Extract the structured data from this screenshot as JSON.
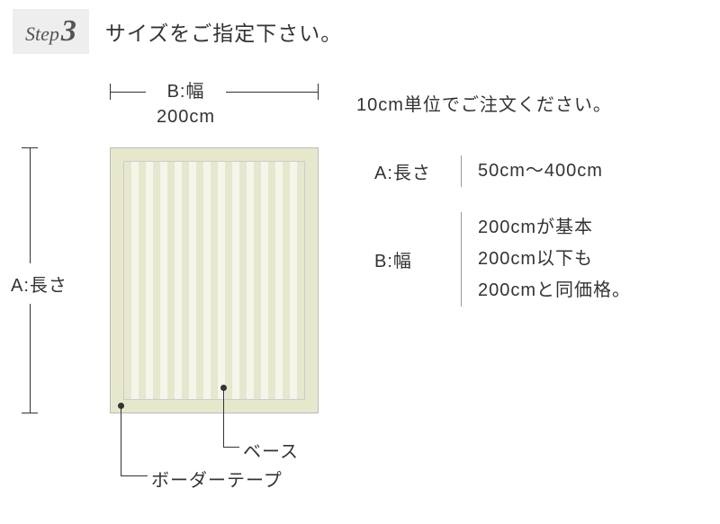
{
  "header": {
    "step_text": "Step",
    "step_num": "3",
    "title": "サイズをご指定下さい。"
  },
  "diagram": {
    "width_label_name": "B:幅",
    "width_label_value": "200cm",
    "height_label": "A:長さ",
    "callout_base": "ベース",
    "callout_border": "ボーダーテープ",
    "colors": {
      "rug_border": "#e7e7ce",
      "stripe_a": "#e7e7ce",
      "stripe_b": "#f5f5ea",
      "outline": "#bbbbbb",
      "pointer": "#333333"
    }
  },
  "right": {
    "note": "10cm単位でご注文ください。",
    "specs": [
      {
        "label": "A:長さ",
        "value": "50cm〜400cm"
      },
      {
        "label": "B:幅",
        "value": "200cmが基本\n200cm以下も\n200cmと同価格。"
      }
    ]
  }
}
